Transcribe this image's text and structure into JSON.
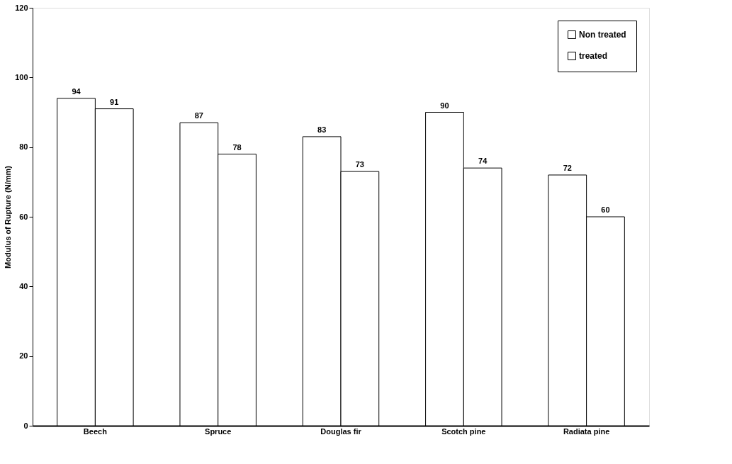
{
  "chart_data": {
    "type": "bar",
    "ylabel": "Modulus of Rupture  (N/mm)",
    "categories": [
      "Beech",
      "Spruce",
      "Douglas fir",
      "Scotch pine",
      "Radiata pine"
    ],
    "series": [
      {
        "name": "Non treated",
        "color": "#ffffff",
        "values": [
          94,
          87,
          83,
          90,
          72
        ]
      },
      {
        "name": "treated",
        "color": "#ffffff",
        "values": [
          91,
          78,
          73,
          74,
          60
        ]
      }
    ],
    "ylim": [
      0,
      120
    ],
    "yticks": [
      0,
      20,
      40,
      60,
      80,
      100,
      120
    ],
    "data_labels": true,
    "grid": false,
    "legend": "top right"
  }
}
